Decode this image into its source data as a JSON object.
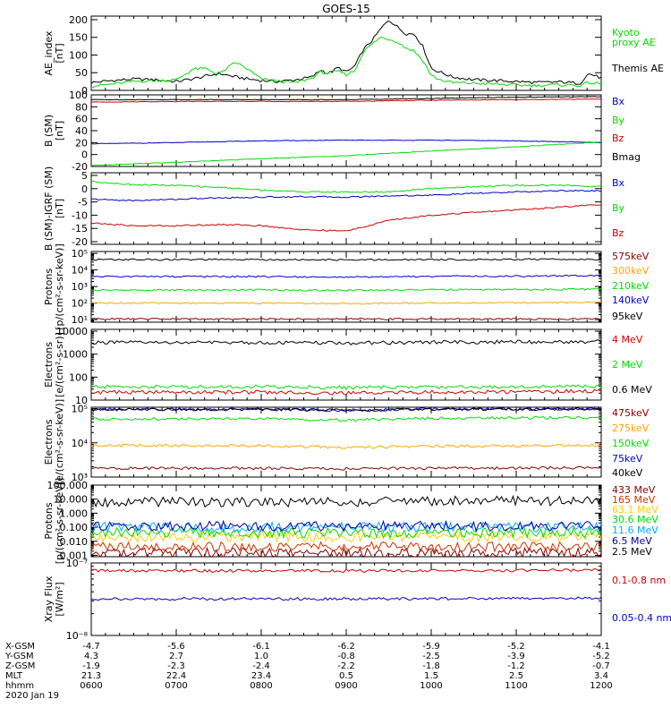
{
  "title": "GOES-15",
  "xaxis": {
    "ticks": [
      "0600",
      "0700",
      "0800",
      "0900",
      "1000",
      "1100",
      "1200"
    ],
    "tick_hours": [
      6,
      7,
      8,
      9,
      10,
      11,
      12
    ],
    "range_hours": [
      6,
      12
    ],
    "minor_per_major": 6,
    "rows": [
      {
        "label": "X-GSM",
        "values": [
          "-4.7",
          "-5.6",
          "-6.1",
          "-6.2",
          "-5.9",
          "-5.2",
          "-4.1"
        ]
      },
      {
        "label": "Y-GSM",
        "values": [
          "4.3",
          "2.7",
          "1.0",
          "-0.8",
          "-2.5",
          "-3.9",
          "-5.2"
        ]
      },
      {
        "label": "Z-GSM",
        "values": [
          "-1.9",
          "-2.3",
          "-2.4",
          "-2.2",
          "-1.8",
          "-1.2",
          "-0.7"
        ]
      },
      {
        "label": "MLT",
        "values": [
          "21.3",
          "22.4",
          "23.4",
          "0.5",
          "1.5",
          "2.5",
          "3.4"
        ]
      },
      {
        "label": "hhmm",
        "values": [
          "0600",
          "0700",
          "0800",
          "0900",
          "1000",
          "1100",
          "1200"
        ]
      }
    ],
    "date": "2020 Jan 19"
  },
  "chart_data": [
    {
      "type": "line",
      "ylabel": "AE_index",
      "yunit": "[nT]",
      "yscale": "linear",
      "ylim": [
        0,
        210
      ],
      "yticks": [
        0,
        50,
        100,
        150,
        200
      ],
      "ytick_labels": [
        "0",
        "50",
        "100",
        "150",
        "200"
      ],
      "x": [
        6.0,
        6.25,
        6.5,
        6.75,
        7.0,
        7.2,
        7.35,
        7.5,
        7.7,
        7.85,
        8.0,
        8.2,
        8.4,
        8.6,
        8.7,
        8.78,
        8.85,
        8.9,
        9.0,
        9.1,
        9.2,
        9.3,
        9.4,
        9.5,
        9.6,
        9.7,
        9.8,
        9.9,
        10.0,
        10.1,
        10.25,
        10.5,
        10.75,
        11.0,
        11.25,
        11.5,
        11.75,
        11.85,
        12.0
      ],
      "series": [
        {
          "name": "Themis AE",
          "color": "#000000",
          "values": [
            22,
            28,
            32,
            30,
            25,
            33,
            40,
            48,
            38,
            32,
            28,
            25,
            30,
            38,
            58,
            48,
            55,
            65,
            52,
            68,
            115,
            140,
            172,
            200,
            180,
            160,
            160,
            125,
            62,
            52,
            38,
            30,
            28,
            25,
            22,
            24,
            20,
            48,
            35
          ]
        },
        {
          "name": "Kyoto proxy AE",
          "color": "#00dd00",
          "values": [
            12,
            18,
            25,
            28,
            30,
            60,
            62,
            45,
            80,
            58,
            32,
            26,
            22,
            35,
            52,
            48,
            52,
            55,
            45,
            55,
            110,
            130,
            150,
            145,
            138,
            120,
            112,
            85,
            42,
            30,
            22,
            20,
            18,
            15,
            14,
            16,
            14,
            22,
            18
          ]
        }
      ],
      "legend": [
        "Kyoto proxy AE",
        "Themis AE"
      ]
    },
    {
      "type": "line",
      "ylabel": "B (SM)",
      "yunit": "[nT]",
      "yscale": "linear",
      "ylim": [
        -20,
        100
      ],
      "yticks": [
        -20,
        0,
        20,
        40,
        60,
        80,
        100
      ],
      "ytick_labels": [
        "-20",
        "0",
        "20",
        "40",
        "60",
        "80",
        "100"
      ],
      "x": [
        6,
        7,
        8,
        9,
        10,
        11,
        12
      ],
      "series": [
        {
          "name": "Bx",
          "color": "#0000cc",
          "values": [
            18,
            20,
            23,
            24,
            24,
            23,
            20
          ]
        },
        {
          "name": "By",
          "color": "#00dd00",
          "values": [
            -18,
            -13,
            -7,
            -2,
            6,
            13,
            21
          ]
        },
        {
          "name": "Bz",
          "color": "#cc0000",
          "values": [
            88,
            89,
            89,
            89,
            91,
            92,
            93
          ]
        },
        {
          "name": "Bmag",
          "color": "#000000",
          "values": [
            92,
            92,
            92,
            92,
            94,
            96,
            97
          ]
        }
      ]
    },
    {
      "type": "line",
      "ylabel": "B (SM)-IGRF (SM)",
      "yunit": "[nT]",
      "yscale": "linear",
      "ylim": [
        -21,
        6
      ],
      "yticks": [
        -20,
        -15,
        -10,
        -5,
        0,
        5
      ],
      "ytick_labels": [
        "-20",
        "-15",
        "-10",
        "-5",
        "0",
        "5"
      ],
      "x": [
        6,
        6.5,
        7,
        7.5,
        8,
        8.5,
        9,
        9.5,
        10,
        10.5,
        11,
        11.5,
        12
      ],
      "series": [
        {
          "name": "Bx",
          "color": "#0000cc",
          "values": [
            -4,
            -4.5,
            -4,
            -3.5,
            -3.2,
            -3,
            -3.2,
            -2.7,
            -2.5,
            -1.8,
            -1.3,
            -0.8,
            -0.8
          ]
        },
        {
          "name": "By",
          "color": "#00dd00",
          "values": [
            2.7,
            1.5,
            1.2,
            0.5,
            -0.5,
            -1.2,
            -1.3,
            -1.2,
            0,
            0.8,
            1.2,
            1.3,
            0.8
          ]
        },
        {
          "name": "Bz",
          "color": "#cc0000",
          "values": [
            -13,
            -14,
            -14,
            -13.5,
            -14,
            -15.5,
            -16,
            -12,
            -10,
            -9,
            -8,
            -7,
            -6
          ]
        }
      ]
    },
    {
      "type": "line",
      "ylabel": "Protons",
      "yunit": "[p/(cm²-s-sr-keV)]",
      "yscale": "log",
      "ylim": [
        7,
        130000.0
      ],
      "yticks": [
        10,
        100,
        1000,
        10000,
        100000
      ],
      "ytick_labels": [
        "10¹",
        "10²",
        "10³",
        "10⁴",
        "10⁵"
      ],
      "x": [
        6,
        8,
        9,
        10,
        12
      ],
      "series": [
        {
          "name": "575keV",
          "color": "#8b0000",
          "values": [
            11,
            11,
            11,
            11,
            11
          ]
        },
        {
          "name": "300keV",
          "color": "#ffa500",
          "values": [
            100,
            100,
            95,
            100,
            110
          ]
        },
        {
          "name": "210keV",
          "color": "#00dd00",
          "values": [
            600,
            620,
            580,
            640,
            680
          ]
        },
        {
          "name": "140keV",
          "color": "#0000cc",
          "values": [
            4000,
            4000,
            3600,
            4000,
            4500
          ]
        },
        {
          "name": "95keV",
          "color": "#000000",
          "values": [
            42000,
            42000,
            40000,
            42000,
            45000
          ]
        }
      ]
    },
    {
      "type": "line",
      "ylabel": "Electrons",
      "yunit": "[e/(cm²-s-sr)]",
      "yscale": "log",
      "ylim": [
        10,
        12000
      ],
      "yticks": [
        10,
        100,
        1000,
        10000
      ],
      "ytick_labels": [
        "10",
        "100",
        "1000",
        "10000"
      ],
      "x": [
        6,
        8,
        9,
        10,
        12
      ],
      "series": [
        {
          "name": "4 MeV",
          "color": "#cc0000",
          "values": [
            22,
            22,
            20,
            22,
            24
          ]
        },
        {
          "name": "2 MeV",
          "color": "#00dd00",
          "values": [
            38,
            38,
            35,
            37,
            40
          ]
        },
        {
          "name": "0.6 MeV",
          "color": "#000000",
          "values": [
            3200,
            3200,
            3000,
            3300,
            3500
          ]
        }
      ]
    },
    {
      "type": "line",
      "ylabel": "Electrons",
      "yunit": "[e/(cm²-s-sr-keV)]",
      "yscale": "log",
      "ylim": [
        1000,
        110000
      ],
      "yticks": [
        1000,
        10000,
        100000
      ],
      "ytick_labels": [
        "10³",
        "10⁴",
        "10⁵"
      ],
      "x": [
        6,
        8,
        9,
        10,
        12
      ],
      "series": [
        {
          "name": "475keV",
          "color": "#8b0000",
          "values": [
            1800,
            1800,
            1750,
            1800,
            1850
          ]
        },
        {
          "name": "275keV",
          "color": "#ffa500",
          "values": [
            8500,
            8200,
            7200,
            8000,
            8500
          ]
        },
        {
          "name": "150keV",
          "color": "#00dd00",
          "values": [
            50000,
            50000,
            46000,
            52000,
            55000
          ]
        },
        {
          "name": "75keV",
          "color": "#0000cc",
          "values": [
            95000,
            95000,
            90000,
            96000,
            98000
          ]
        },
        {
          "name": "40keV",
          "color": "#000000",
          "values": [
            95000,
            95000,
            90000,
            96000,
            98000
          ]
        }
      ]
    },
    {
      "type": "line",
      "ylabel": "Protons",
      "yunit": "[p/(cm²-s-sr-keV)]",
      "yscale": "log",
      "ylim": [
        0.0008,
        100
      ],
      "yticks": [
        0.001,
        0.01,
        0.1,
        1,
        10,
        100
      ],
      "ytick_labels": [
        "0.001",
        "0.010",
        "0.100",
        "1.000",
        "10.000",
        "100.000"
      ],
      "x": [
        6,
        9,
        12
      ],
      "series": [
        {
          "name": "433 MeV",
          "color": "#8b0000",
          "values": [
            0.0015,
            0.0015,
            0.0015
          ]
        },
        {
          "name": "165 MeV",
          "color": "#cc3300",
          "values": [
            0.004,
            0.004,
            0.004
          ]
        },
        {
          "name": "63.1 MeV",
          "color": "#ffcc00",
          "values": [
            0.02,
            0.02,
            0.02
          ]
        },
        {
          "name": "30.6 MeV",
          "color": "#00dd00",
          "values": [
            0.04,
            0.04,
            0.04
          ]
        },
        {
          "name": "11.6 MeV",
          "color": "#00aaff",
          "values": [
            0.1,
            0.1,
            0.1
          ]
        },
        {
          "name": "6.5 MeV",
          "color": "#000099",
          "values": [
            0.12,
            0.12,
            0.12
          ]
        },
        {
          "name": "2.5 MeV",
          "color": "#000000",
          "values": [
            6,
            6.5,
            8
          ]
        }
      ]
    },
    {
      "type": "line",
      "ylabel": "Xray Flux",
      "yunit": "[W/m²]",
      "yscale": "log",
      "ylim": [
        1e-08,
        1e-07
      ],
      "yticks": [
        1e-08,
        1e-07
      ],
      "ytick_labels": [
        "10⁻⁸",
        "10⁻⁷"
      ],
      "x": [
        6,
        8,
        9,
        10,
        12
      ],
      "series": [
        {
          "name": "0.1-0.8 nm",
          "color": "#cc0000",
          "values": [
            7.8e-08,
            7.8e-08,
            7.8e-08,
            7.8e-08,
            8e-08
          ]
        },
        {
          "name": "0.05-0.4 nm",
          "color": "#0000cc",
          "values": [
            3.2e-08,
            3.2e-08,
            3.2e-08,
            3.2e-08,
            3.3e-08
          ]
        }
      ]
    }
  ]
}
